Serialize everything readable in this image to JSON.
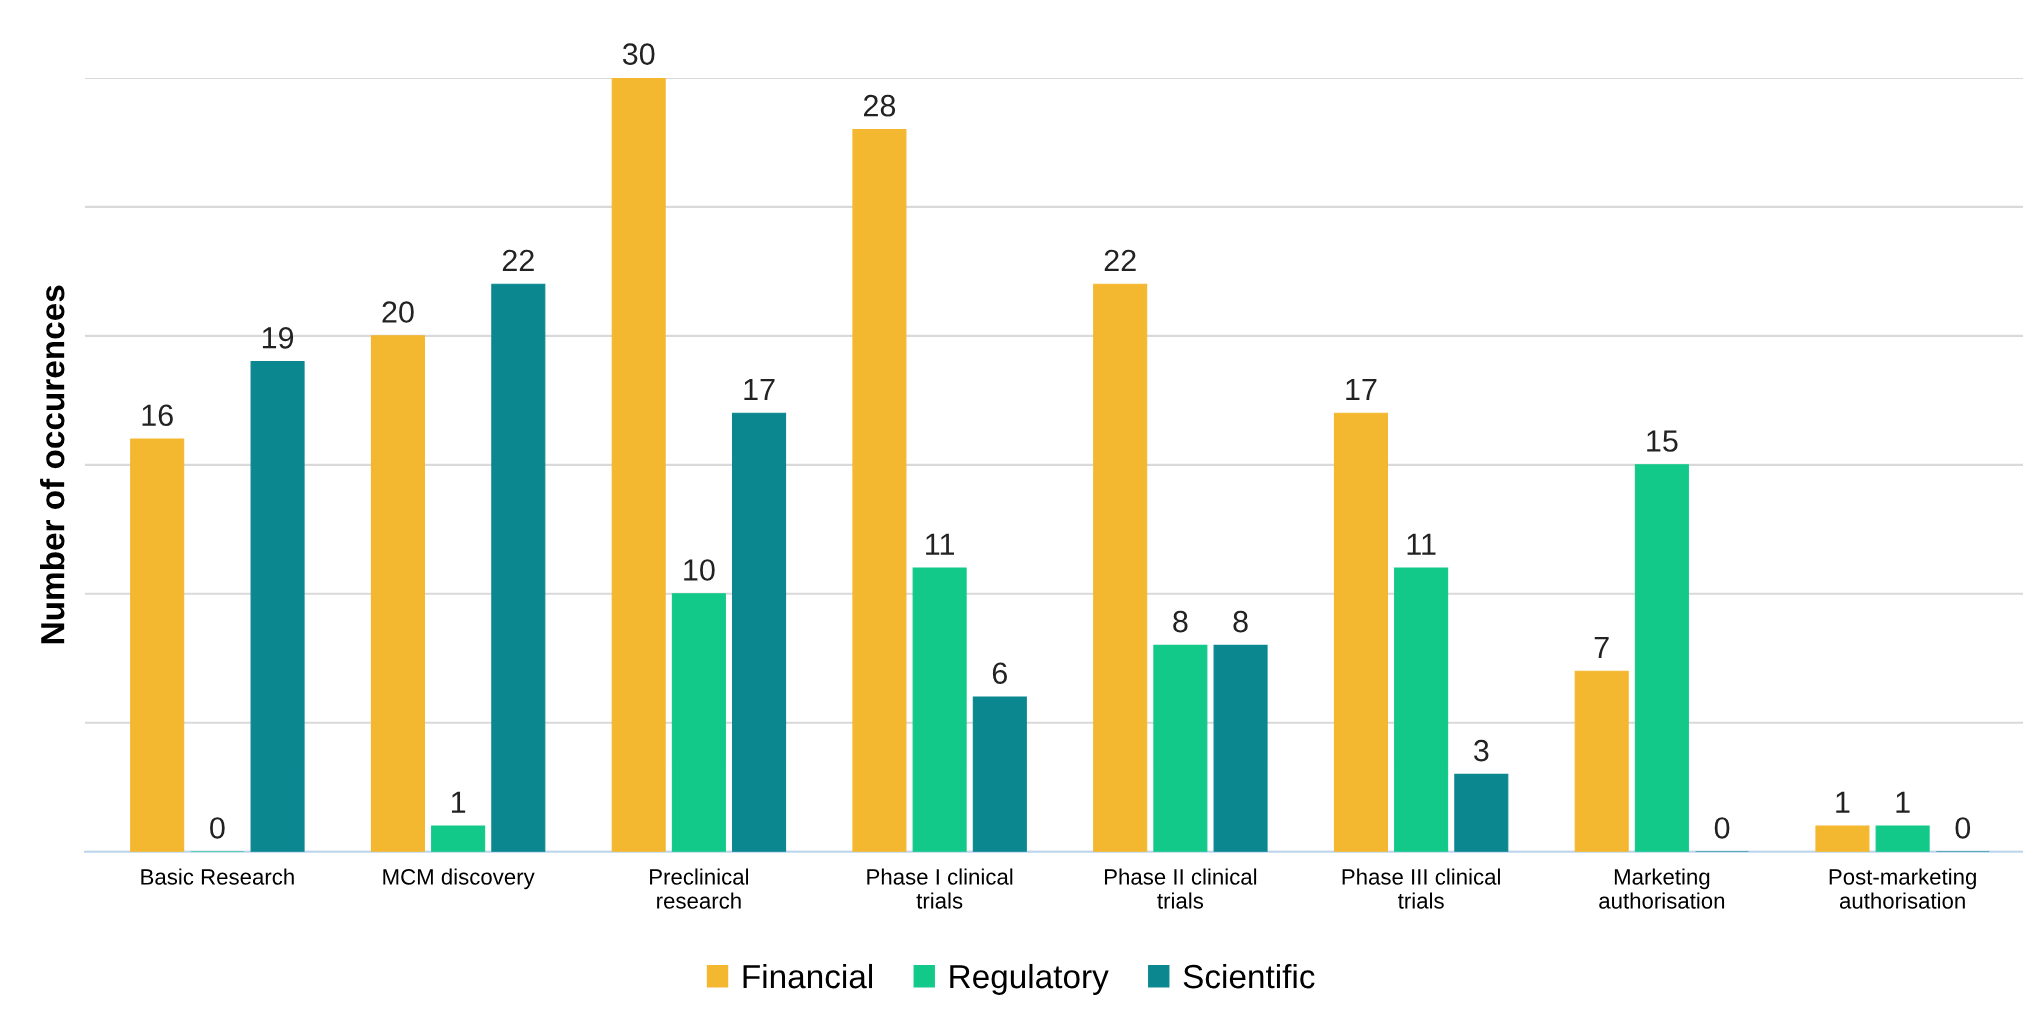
{
  "chart_data": {
    "type": "bar",
    "ylabel": "Number of occurences",
    "categories": [
      "Basic Research",
      "MCM discovery",
      "Preclinical\nresearch",
      "Phase I clinical\ntrials",
      "Phase II clinical\ntrials",
      "Phase III clinical\ntrials",
      "Marketing\nauthorisation",
      "Post-marketing\nauthorisation"
    ],
    "series": [
      {
        "name": "Financial",
        "color": "#f4b730",
        "values": [
          16,
          20,
          30,
          28,
          22,
          17,
          7,
          1
        ]
      },
      {
        "name": "Regulatory",
        "color": "#13c98a",
        "values": [
          0,
          1,
          10,
          11,
          8,
          11,
          15,
          1
        ]
      },
      {
        "name": "Scientific",
        "color": "#0b8790",
        "values": [
          19,
          22,
          17,
          6,
          8,
          3,
          0,
          0
        ]
      }
    ],
    "ylim": [
      0,
      30
    ],
    "yticks": [
      {
        "value": 0,
        "label": null
      },
      {
        "value": 5,
        "label": null
      },
      {
        "value": 10,
        "label": null
      },
      {
        "value": 15,
        "label": null
      },
      {
        "value": 20,
        "label": null
      },
      {
        "value": 25,
        "label": null
      },
      {
        "value": 30,
        "label": null
      }
    ],
    "tick_labels": "x",
    "grid": "y",
    "legend": "bottom",
    "data_labels": true
  }
}
